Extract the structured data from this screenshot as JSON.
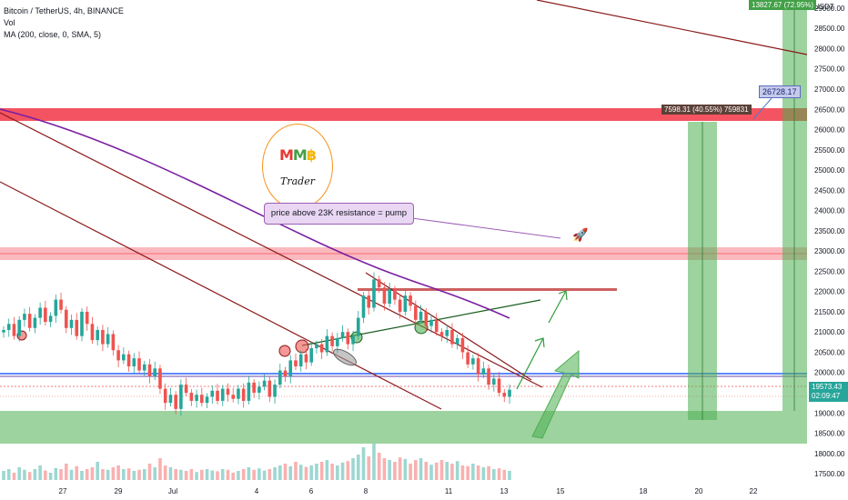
{
  "legend": {
    "symbol": "Bitcoin / TetherUS, 4h, BINANCE",
    "vol": "Vol",
    "ma": "MA (200, close, 0, SMA, 5)"
  },
  "axis": {
    "currency": "USDT",
    "price_ticks": [
      "29000.00",
      "28500.00",
      "28000.00",
      "27500.00",
      "27000.00",
      "26500.00",
      "26000.00",
      "25500.00",
      "25000.00",
      "24500.00",
      "24000.00",
      "23500.00",
      "23000.00",
      "22500.00",
      "22000.00",
      "21500.00",
      "21000.00",
      "20500.00",
      "20000.00",
      "19500.00",
      "19000.00",
      "18500.00",
      "18000.00",
      "17500.00"
    ],
    "time_ticks": [
      "27",
      "29",
      "Jul",
      "4",
      "6",
      "8",
      "11",
      "13",
      "15",
      "18",
      "20",
      "22"
    ]
  },
  "current_price": {
    "value": "19573.43",
    "countdown": "02:09:47"
  },
  "annotations": {
    "note": "price above 23K resistance = pump",
    "target_big": "13827.67 (72.95%)",
    "target_mid": "7598.31 (40.55%) 759831",
    "target_label": "26728.17"
  },
  "logo": {
    "mmb_m1": "M",
    "mmb_m2": "M",
    "mmb_b": "฿",
    "trader": "Trader"
  },
  "colors": {
    "up": "#26a69a",
    "down": "#ef5350",
    "ma": "#7b1fa2",
    "resistance_zone": "#f23645",
    "support_zone": "#4caf50",
    "trendline": "#8b1a1a",
    "blue_line": "#2962ff"
  },
  "chart_data": {
    "type": "candlestick",
    "title": "Bitcoin / TetherUS, 4h, BINANCE",
    "ylim": [
      17300,
      29200
    ],
    "y_axis_unit": "USDT",
    "x_ticks": [
      "27",
      "29",
      "Jul",
      "4",
      "6",
      "8",
      "11",
      "13",
      "15",
      "18",
      "20",
      "22"
    ],
    "closes": [
      21050,
      21200,
      20900,
      21300,
      21450,
      21100,
      21350,
      21600,
      21250,
      21400,
      21800,
      21550,
      21100,
      21300,
      20900,
      21500,
      21200,
      20800,
      21050,
      20700,
      20950,
      20550,
      20300,
      20450,
      20150,
      20350,
      20050,
      20200,
      19900,
      20100,
      19600,
      19250,
      19450,
      19100,
      19700,
      19500,
      19300,
      19450,
      19250,
      19400,
      19550,
      19300,
      19600,
      19450,
      19350,
      19600,
      19300,
      19750,
      19500,
      19650,
      19800,
      19400,
      19700,
      20050,
      19900,
      20300,
      20150,
      20450,
      20250,
      20600,
      20700,
      20500,
      20900,
      20650,
      20850,
      21000,
      20700,
      20900,
      21350,
      21900,
      21600,
      22300,
      22100,
      21700,
      22050,
      21800,
      21500,
      21900,
      21650,
      21300,
      21500,
      21150,
      21300,
      21000,
      20900,
      21050,
      20700,
      20850,
      20500,
      20200,
      20350,
      19950,
      20100,
      19700,
      19850,
      19500,
      19400,
      19573
    ],
    "volumes": [
      0.25,
      0.3,
      0.2,
      0.35,
      0.28,
      0.22,
      0.3,
      0.4,
      0.26,
      0.2,
      0.33,
      0.3,
      0.45,
      0.28,
      0.38,
      0.25,
      0.3,
      0.35,
      0.5,
      0.3,
      0.28,
      0.35,
      0.4,
      0.3,
      0.32,
      0.25,
      0.28,
      0.3,
      0.45,
      0.35,
      0.6,
      0.4,
      0.35,
      0.3,
      0.28,
      0.25,
      0.3,
      0.22,
      0.28,
      0.3,
      0.26,
      0.24,
      0.3,
      0.28,
      0.2,
      0.25,
      0.3,
      0.35,
      0.28,
      0.32,
      0.26,
      0.3,
      0.35,
      0.4,
      0.45,
      0.38,
      0.5,
      0.42,
      0.36,
      0.4,
      0.45,
      0.5,
      0.55,
      0.45,
      0.4,
      0.48,
      0.52,
      0.6,
      0.7,
      0.9,
      0.65,
      1.0,
      0.75,
      0.6,
      0.55,
      0.5,
      0.62,
      0.58,
      0.45,
      0.55,
      0.6,
      0.5,
      0.42,
      0.48,
      0.55,
      0.5,
      0.45,
      0.52,
      0.4,
      0.38,
      0.45,
      0.4,
      0.35,
      0.38,
      0.3,
      0.32,
      0.28,
      0.25
    ]
  }
}
